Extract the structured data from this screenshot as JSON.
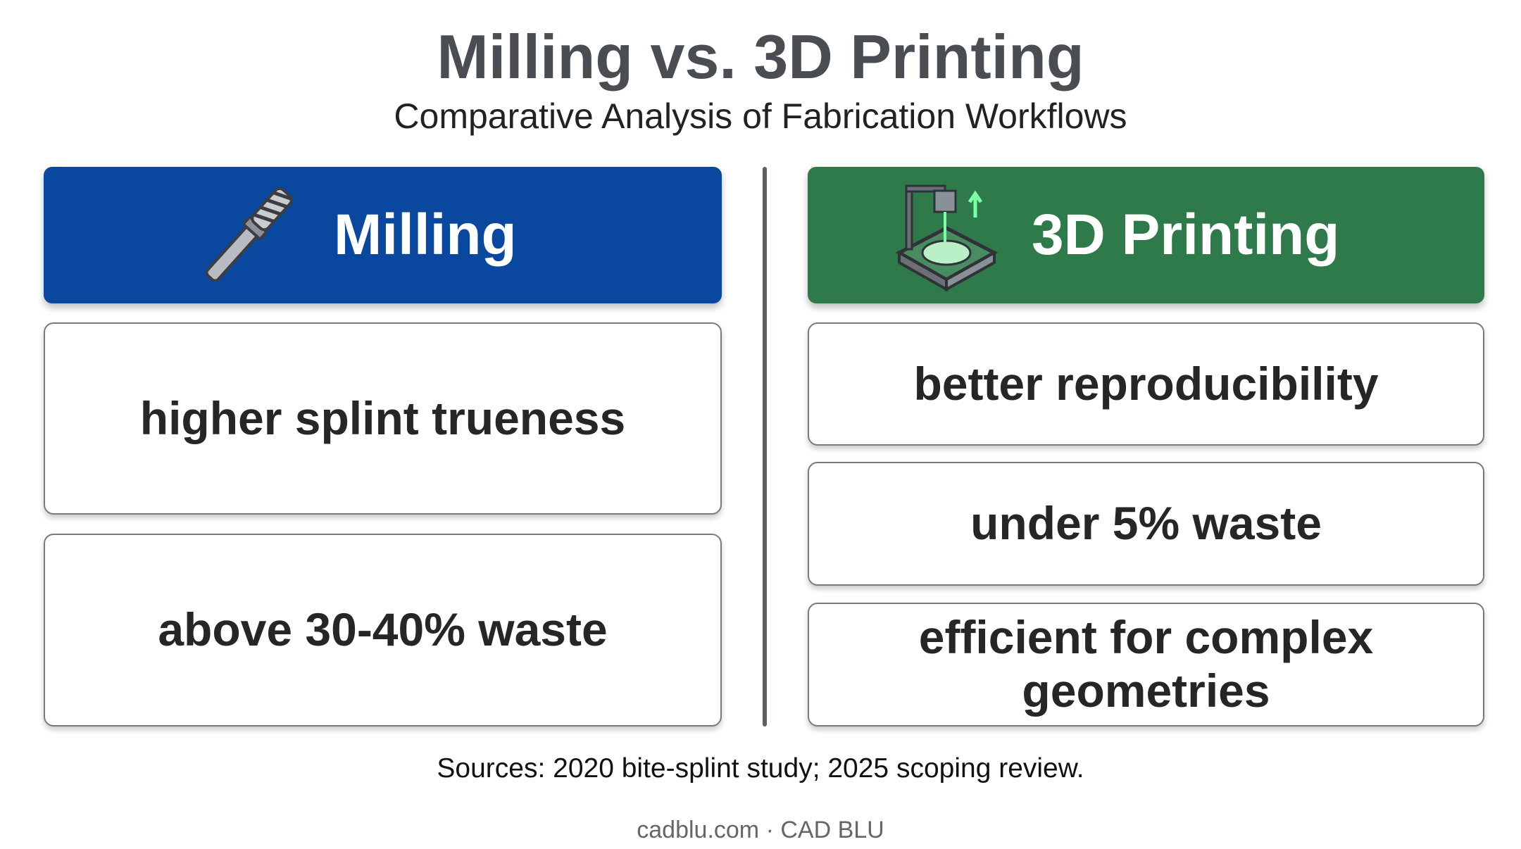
{
  "header": {
    "title": "Milling vs. 3D Printing",
    "subtitle": "Comparative Analysis of Fabrication Workflows"
  },
  "columns": [
    {
      "heading": "Milling",
      "items": [
        "higher splint trueness",
        "above 30-40% waste"
      ]
    },
    {
      "heading": "3D Printing",
      "items": [
        "better reproducibility",
        "under 5% waste",
        "efficient for complex geometries"
      ]
    }
  ],
  "sources": "Sources: 2020 bite-splint study; 2025 scoping review.",
  "footer": "cadblu.com · CAD BLU"
}
